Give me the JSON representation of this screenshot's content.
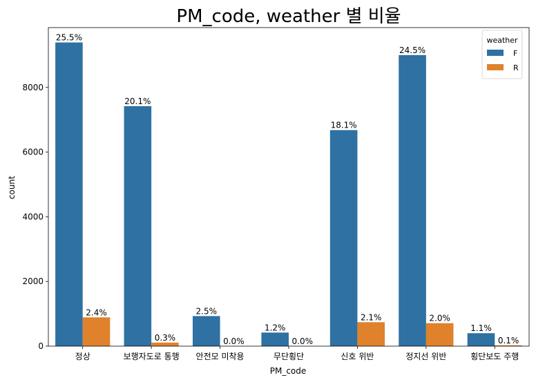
{
  "chart_data": {
    "type": "bar",
    "title": "PM_code, weather 별 비율",
    "xlabel": "PM_code",
    "ylabel": "count",
    "categories": [
      "정상",
      "보행자도로 통행",
      "안전모 미착용",
      "무단횡단",
      "신호 위반",
      "정지선 위반",
      "횡단보도 주행"
    ],
    "ylim": [
      0,
      9850
    ],
    "yticks": [
      0,
      2000,
      4000,
      6000,
      8000
    ],
    "grid": false,
    "legend": {
      "title": "weather",
      "placement": "top-right"
    },
    "series": [
      {
        "name": "F",
        "color": "#2e71a2",
        "values": [
          9390,
          7420,
          930,
          420,
          6680,
          9000,
          400
        ],
        "labels": [
          "25.5%",
          "20.1%",
          "2.5%",
          "1.2%",
          "18.1%",
          "24.5%",
          "1.1%"
        ]
      },
      {
        "name": "R",
        "color": "#e0812c",
        "values": [
          890,
          110,
          0,
          0,
          740,
          710,
          25
        ],
        "labels": [
          "2.4%",
          "0.3%",
          "0.0%",
          "0.0%",
          "2.1%",
          "2.0%",
          "0.1%"
        ]
      }
    ]
  }
}
